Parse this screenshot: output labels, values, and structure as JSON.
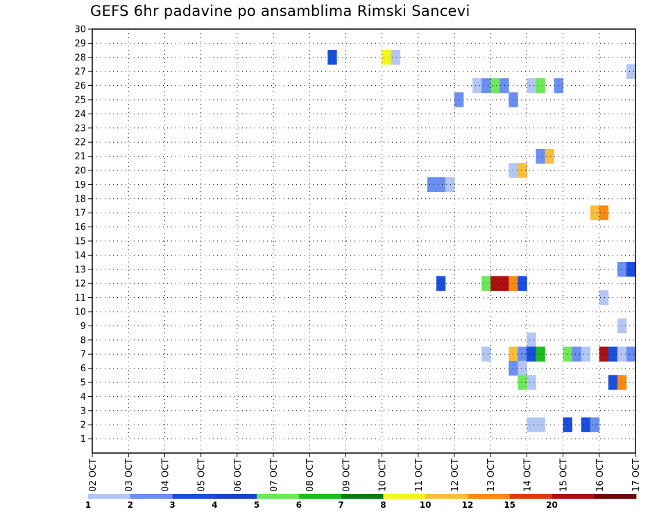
{
  "title": "GEFS 6hr padavine po ansamblima Rimski Sancevi",
  "chart_data": {
    "type": "heatmap",
    "title": "GEFS 6hr padavine po ansamblima Rimski Sancevi",
    "xlabel": "",
    "ylabel": "",
    "x_ticks": [
      "02 OCT",
      "03 OCT",
      "04 OCT",
      "05 OCT",
      "06 OCT",
      "07 OCT",
      "08 OCT",
      "09 OCT",
      "10 OCT",
      "11 OCT",
      "12 OCT",
      "13 OCT",
      "14 OCT",
      "15 OCT",
      "16 OCT",
      "17 OCT"
    ],
    "xlim_day": [
      2,
      17
    ],
    "y_ticks": [
      1,
      2,
      3,
      4,
      5,
      6,
      7,
      8,
      9,
      10,
      11,
      12,
      13,
      14,
      15,
      16,
      17,
      18,
      19,
      20,
      21,
      22,
      23,
      24,
      25,
      26,
      27,
      28,
      29,
      30
    ],
    "ylim": [
      0,
      30
    ],
    "grid": true,
    "colorbar": {
      "labels": [
        "1",
        "2",
        "3",
        "4",
        "5",
        "6",
        "7",
        "8",
        "10",
        "12",
        "15",
        "20"
      ],
      "colors": [
        "#b3c6f4",
        "#6b8ff0",
        "#1a4fdc",
        "#1c44c8",
        "#6ee85a",
        "#1fbc1f",
        "#0f7a12",
        "#f5f51e",
        "#fbbd3e",
        "#fb8a14",
        "#e03a12",
        "#ad1010",
        "#6e0707"
      ]
    },
    "cell_days": 0.25,
    "cells": [
      {
        "member": 28,
        "day": 8.625,
        "color": "#1a4fdc"
      },
      {
        "member": 28,
        "day": 10.125,
        "color": "#f5f51e"
      },
      {
        "member": 28,
        "day": 10.375,
        "color": "#b3c6f4"
      },
      {
        "member": 27,
        "day": 16.875,
        "color": "#b3c6f4"
      },
      {
        "member": 26,
        "day": 12.625,
        "color": "#b3c6f4"
      },
      {
        "member": 26,
        "day": 12.875,
        "color": "#6b8ff0"
      },
      {
        "member": 26,
        "day": 13.125,
        "color": "#6ee85a"
      },
      {
        "member": 26,
        "day": 13.375,
        "color": "#6b8ff0"
      },
      {
        "member": 26,
        "day": 14.125,
        "color": "#b3c6f4"
      },
      {
        "member": 26,
        "day": 14.375,
        "color": "#6ee85a"
      },
      {
        "member": 26,
        "day": 14.875,
        "color": "#6b8ff0"
      },
      {
        "member": 25,
        "day": 12.125,
        "color": "#6b8ff0"
      },
      {
        "member": 25,
        "day": 13.625,
        "color": "#6b8ff0"
      },
      {
        "member": 21,
        "day": 14.375,
        "color": "#6b8ff0"
      },
      {
        "member": 21,
        "day": 14.625,
        "color": "#fbbd3e"
      },
      {
        "member": 20,
        "day": 13.625,
        "color": "#b3c6f4"
      },
      {
        "member": 20,
        "day": 13.875,
        "color": "#fbbd3e"
      },
      {
        "member": 19,
        "day": 11.375,
        "color": "#6b8ff0"
      },
      {
        "member": 19,
        "day": 11.625,
        "color": "#6b8ff0"
      },
      {
        "member": 19,
        "day": 11.875,
        "color": "#b3c6f4"
      },
      {
        "member": 17,
        "day": 15.875,
        "color": "#fbbd3e"
      },
      {
        "member": 17,
        "day": 16.125,
        "color": "#fb8a14"
      },
      {
        "member": 13,
        "day": 16.625,
        "color": "#6b8ff0"
      },
      {
        "member": 13,
        "day": 16.875,
        "color": "#1a4fdc"
      },
      {
        "member": 12,
        "day": 11.625,
        "color": "#1a4fdc"
      },
      {
        "member": 12,
        "day": 12.875,
        "color": "#6ee85a"
      },
      {
        "member": 12,
        "day": 13.125,
        "color": "#ad1010"
      },
      {
        "member": 12,
        "day": 13.375,
        "color": "#ad1010"
      },
      {
        "member": 12,
        "day": 13.625,
        "color": "#fb8a14"
      },
      {
        "member": 12,
        "day": 13.875,
        "color": "#1a4fdc"
      },
      {
        "member": 11,
        "day": 16.125,
        "color": "#b3c6f4"
      },
      {
        "member": 9,
        "day": 16.625,
        "color": "#b3c6f4"
      },
      {
        "member": 8,
        "day": 14.125,
        "color": "#b3c6f4"
      },
      {
        "member": 7,
        "day": 12.875,
        "color": "#b3c6f4"
      },
      {
        "member": 7,
        "day": 13.625,
        "color": "#fbbd3e"
      },
      {
        "member": 7,
        "day": 13.875,
        "color": "#6b8ff0"
      },
      {
        "member": 7,
        "day": 14.125,
        "color": "#1a4fdc"
      },
      {
        "member": 7,
        "day": 14.375,
        "color": "#1fbc1f"
      },
      {
        "member": 7,
        "day": 15.125,
        "color": "#6ee85a"
      },
      {
        "member": 7,
        "day": 15.375,
        "color": "#6b8ff0"
      },
      {
        "member": 7,
        "day": 15.625,
        "color": "#b3c6f4"
      },
      {
        "member": 7,
        "day": 16.125,
        "color": "#ad1010"
      },
      {
        "member": 7,
        "day": 16.375,
        "color": "#1a4fdc"
      },
      {
        "member": 7,
        "day": 16.625,
        "color": "#b3c6f4"
      },
      {
        "member": 7,
        "day": 16.875,
        "color": "#6b8ff0"
      },
      {
        "member": 6,
        "day": 13.625,
        "color": "#6b8ff0"
      },
      {
        "member": 6,
        "day": 13.875,
        "color": "#b3c6f4"
      },
      {
        "member": 5,
        "day": 13.875,
        "color": "#6ee85a"
      },
      {
        "member": 5,
        "day": 14.125,
        "color": "#b3c6f4"
      },
      {
        "member": 5,
        "day": 16.375,
        "color": "#1a4fdc"
      },
      {
        "member": 5,
        "day": 16.625,
        "color": "#fb8a14"
      },
      {
        "member": 2,
        "day": 14.125,
        "color": "#b3c6f4"
      },
      {
        "member": 2,
        "day": 14.375,
        "color": "#b3c6f4"
      },
      {
        "member": 2,
        "day": 15.125,
        "color": "#1a4fdc"
      },
      {
        "member": 2,
        "day": 15.625,
        "color": "#1a4fdc"
      },
      {
        "member": 2,
        "day": 15.875,
        "color": "#6b8ff0"
      }
    ]
  }
}
